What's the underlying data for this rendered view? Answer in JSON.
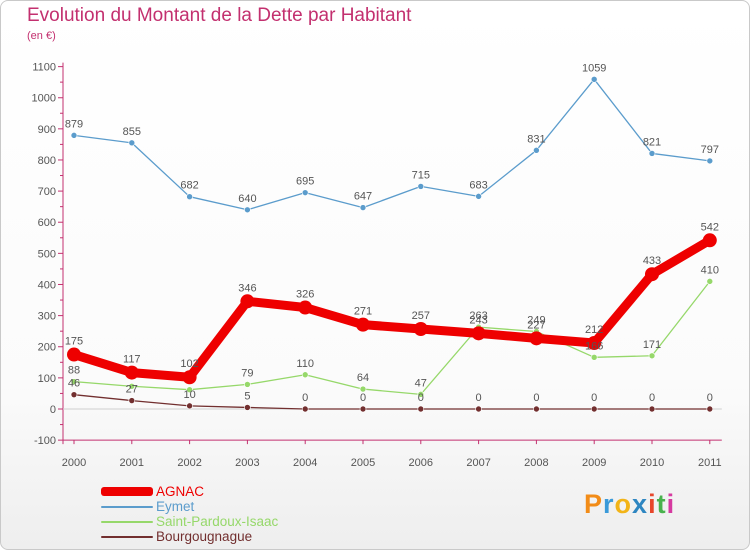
{
  "header": {
    "title": "Evolution du Montant de la Dette par Habitant",
    "subtitle": "(en €)"
  },
  "logo": {
    "letters": [
      "P",
      "r",
      "o",
      "x",
      "i",
      "t",
      "i"
    ],
    "colors": [
      "#f28c18",
      "#3a9ad9",
      "#f2b418",
      "#2e86c1",
      "#e7462b",
      "#49b24d",
      "#d63aa0"
    ]
  },
  "chart_data": {
    "type": "line",
    "title": "Evolution du Montant de la Dette par Habitant",
    "subtitle": "(en €)",
    "x": [
      "2000",
      "2001",
      "2002",
      "2003",
      "2004",
      "2005",
      "2006",
      "2007",
      "2008",
      "2009",
      "2010",
      "2011"
    ],
    "ylim": [
      -100,
      1100
    ],
    "yticks": [
      -100,
      0,
      100,
      200,
      300,
      400,
      500,
      600,
      700,
      800,
      900,
      1000,
      1100
    ],
    "grid": false,
    "legend_position": "bottom-left",
    "series": [
      {
        "name": "Eymet",
        "color": "#5b9ccc",
        "values": [
          879,
          855,
          682,
          640,
          695,
          647,
          715,
          683,
          831,
          1059,
          821,
          797
        ],
        "labels": [
          "879",
          "855",
          "682",
          "640",
          "695",
          "647",
          "715",
          "683",
          "831",
          "1059",
          "821",
          "797"
        ]
      },
      {
        "name": "Saint-Pardoux-Isaac",
        "color": "#96d86a",
        "values": [
          88,
          73,
          62,
          79,
          110,
          64,
          47,
          263,
          249,
          166,
          171,
          410
        ],
        "labels": [
          "88",
          "",
          "",
          "79",
          "110",
          "64",
          "47",
          "263",
          "249",
          "166",
          "171",
          "410"
        ]
      },
      {
        "name": "Bourgougnague",
        "color": "#722f2f",
        "values": [
          46,
          27,
          10,
          5,
          0,
          0,
          0,
          0,
          0,
          0,
          0,
          0
        ],
        "labels": [
          "46",
          "27",
          "10",
          "5",
          "0",
          "0",
          "0",
          "0",
          "0",
          "0",
          "0",
          "0"
        ]
      },
      {
        "name": "AGNAC",
        "color": "#ee0000",
        "values": [
          175,
          117,
          102,
          346,
          326,
          271,
          257,
          243,
          227,
          212,
          433,
          542
        ],
        "labels": [
          "175",
          "117",
          "102",
          "346",
          "326",
          "271",
          "257",
          "243",
          "227",
          "212",
          "433",
          "542"
        ]
      }
    ]
  },
  "legend": {
    "items": [
      {
        "label": "AGNAC",
        "color": "#ee0000",
        "thickness": 9
      },
      {
        "label": "Eymet",
        "color": "#5b9ccc",
        "thickness": 2
      },
      {
        "label": "Saint-Pardoux-Isaac",
        "color": "#96d86a",
        "thickness": 2
      },
      {
        "label": "Bourgougnague",
        "color": "#722f2f",
        "thickness": 2
      }
    ]
  }
}
